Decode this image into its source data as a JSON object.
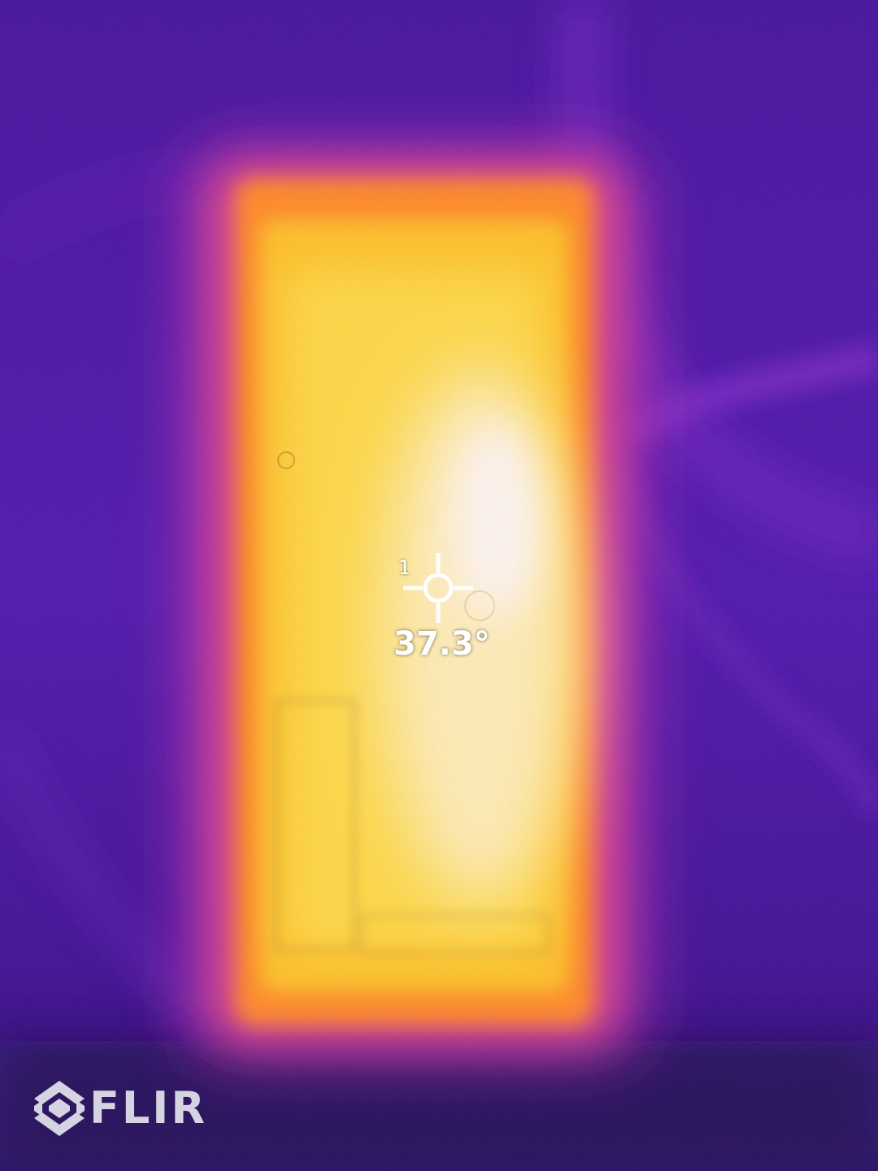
{
  "measurement": {
    "spot_index": "1",
    "spot_temperature": "37.3°"
  },
  "brand": {
    "logo_text": "FLIR"
  },
  "palette": {
    "cold": "#2c0a78",
    "cool": "#5a18b4",
    "mid": "#c42ab0",
    "warm": "#ff7a1a",
    "hot": "#ffd21e",
    "hottest": "#fffbe8"
  }
}
